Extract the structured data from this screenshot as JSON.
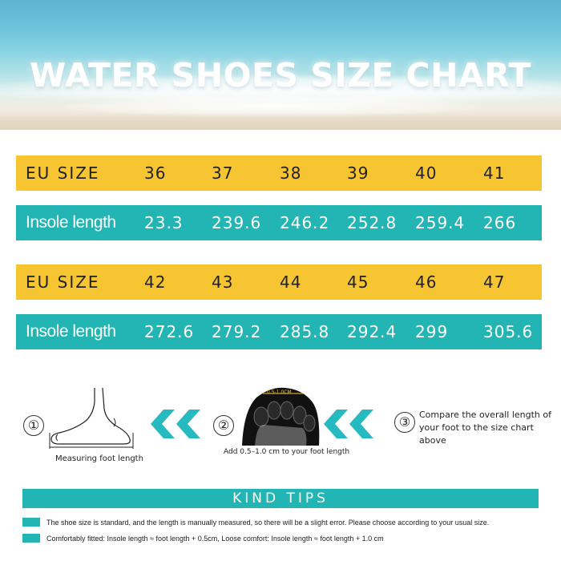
{
  "banner": {
    "title": "WATER SHOES SIZE CHART"
  },
  "size_table": [
    {
      "size_label": "EU SIZE",
      "sizes": [
        "36",
        "37",
        "38",
        "39",
        "40",
        "41"
      ],
      "length_label": "Insole length",
      "lengths": [
        "23.3",
        "239.6",
        "246.2",
        "252.8",
        "259.4",
        "266"
      ]
    },
    {
      "size_label": "EU SIZE",
      "sizes": [
        "42",
        "43",
        "44",
        "45",
        "46",
        "47"
      ],
      "length_label": "Insole length",
      "lengths": [
        "272.6",
        "279.2",
        "285.8",
        "292.4",
        "299",
        "305.6"
      ]
    }
  ],
  "instructions": {
    "step1": {
      "number": "①",
      "caption": "Measuring foot length"
    },
    "step2": {
      "number": "②",
      "caption": "Add 0.5–1.0 cm to your foot length",
      "marker": "0.5-1.0CM"
    },
    "step3": {
      "number": "③",
      "text": "Compare the overall length of your foot to the size chart above"
    }
  },
  "kind_tips": {
    "header": "KIND TIPS",
    "items": [
      "The shoe size is standard, and the length is manually measured, so there will be a slight error. Please choose according to your usual size.",
      "Comfortably fitted: Insole length ≈ foot length + 0.5cm,   Loose comfort: Insole length ≈ foot length + 1.0 cm"
    ]
  },
  "colors": {
    "yellow": "#f7c531",
    "teal": "#22b5b3",
    "arrow_teal": "#27b9c0"
  },
  "icons": [
    "bare-foot-illustration",
    "chevron-left-double-icon",
    "shoe-sole-photo",
    "chevron-left-double-icon"
  ]
}
